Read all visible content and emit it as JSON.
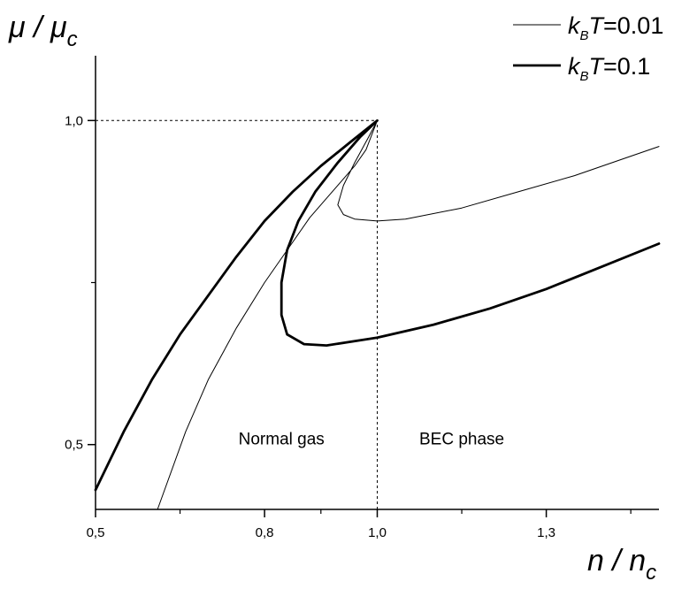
{
  "chart_data": {
    "type": "line",
    "xlabel": {
      "main": "n / n",
      "sub": "c"
    },
    "ylabel": {
      "main": "μ / μ",
      "sub": "c"
    },
    "xlim": [
      0.5,
      1.5
    ],
    "ylim": [
      0.4,
      1.1
    ],
    "xticks": [
      {
        "value": 0.5,
        "label": "0,5"
      },
      {
        "value": 0.8,
        "label": "0,8"
      },
      {
        "value": 1.0,
        "label": "1,0"
      },
      {
        "value": 1.3,
        "label": "1,3"
      }
    ],
    "xminorticks": [
      0.65,
      0.9,
      1.15,
      1.45
    ],
    "yticks": [
      {
        "value": 0.5,
        "label": "0,5"
      },
      {
        "value": 1.0,
        "label": "1,0"
      }
    ],
    "yminorticks": [
      0.75
    ],
    "reference_lines": [
      {
        "kind": "vertical",
        "x": 1.0,
        "y_from": 0.4,
        "y_to": 1.0,
        "style": "dashed"
      },
      {
        "kind": "horizontal",
        "y": 1.0,
        "x_from": 0.5,
        "x_to": 1.0,
        "style": "dashed"
      }
    ],
    "annotations": [
      {
        "text": "Normal gas",
        "x": 0.83,
        "y": 0.5
      },
      {
        "text": "BEC phase",
        "x": 1.15,
        "y": 0.5
      }
    ],
    "legend": {
      "position": "top-right",
      "entries": [
        {
          "prefix": "k",
          "sub": "B",
          "italic": "T",
          "suffix": "=0.01",
          "stroke": "thin"
        },
        {
          "prefix": "k",
          "sub": "B",
          "italic": "T",
          "suffix": "=0.1",
          "stroke": "thick"
        }
      ]
    },
    "series": [
      {
        "name": "kBT=0.01",
        "stroke": "thin",
        "points": [
          [
            0.61,
            0.4
          ],
          [
            0.66,
            0.52
          ],
          [
            0.7,
            0.6
          ],
          [
            0.75,
            0.68
          ],
          [
            0.8,
            0.75
          ],
          [
            0.84,
            0.8
          ],
          [
            0.88,
            0.85
          ],
          [
            0.91,
            0.88
          ],
          [
            0.935,
            0.905
          ],
          [
            0.96,
            0.93
          ],
          [
            0.98,
            0.955
          ],
          [
            1.0,
            1.0
          ],
          [
            0.985,
            0.975
          ],
          [
            0.96,
            0.935
          ],
          [
            0.94,
            0.9
          ],
          [
            0.93,
            0.87
          ],
          [
            0.94,
            0.855
          ],
          [
            0.96,
            0.848
          ],
          [
            1.0,
            0.845
          ],
          [
            1.05,
            0.848
          ],
          [
            1.15,
            0.865
          ],
          [
            1.25,
            0.89
          ],
          [
            1.35,
            0.915
          ],
          [
            1.45,
            0.945
          ],
          [
            1.5,
            0.96
          ]
        ]
      },
      {
        "name": "kBT=0.1",
        "stroke": "thick",
        "points": [
          [
            0.5,
            0.43
          ],
          [
            0.55,
            0.52
          ],
          [
            0.6,
            0.6
          ],
          [
            0.65,
            0.67
          ],
          [
            0.7,
            0.73
          ],
          [
            0.75,
            0.79
          ],
          [
            0.8,
            0.845
          ],
          [
            0.85,
            0.89
          ],
          [
            0.9,
            0.93
          ],
          [
            0.95,
            0.965
          ],
          [
            1.0,
            1.0
          ],
          [
            0.97,
            0.975
          ],
          [
            0.93,
            0.935
          ],
          [
            0.89,
            0.89
          ],
          [
            0.86,
            0.845
          ],
          [
            0.84,
            0.8
          ],
          [
            0.83,
            0.75
          ],
          [
            0.83,
            0.7
          ],
          [
            0.84,
            0.67
          ],
          [
            0.87,
            0.655
          ],
          [
            0.91,
            0.653
          ],
          [
            1.0,
            0.665
          ],
          [
            1.1,
            0.685
          ],
          [
            1.2,
            0.71
          ],
          [
            1.3,
            0.74
          ],
          [
            1.4,
            0.775
          ],
          [
            1.5,
            0.81
          ]
        ]
      }
    ]
  }
}
